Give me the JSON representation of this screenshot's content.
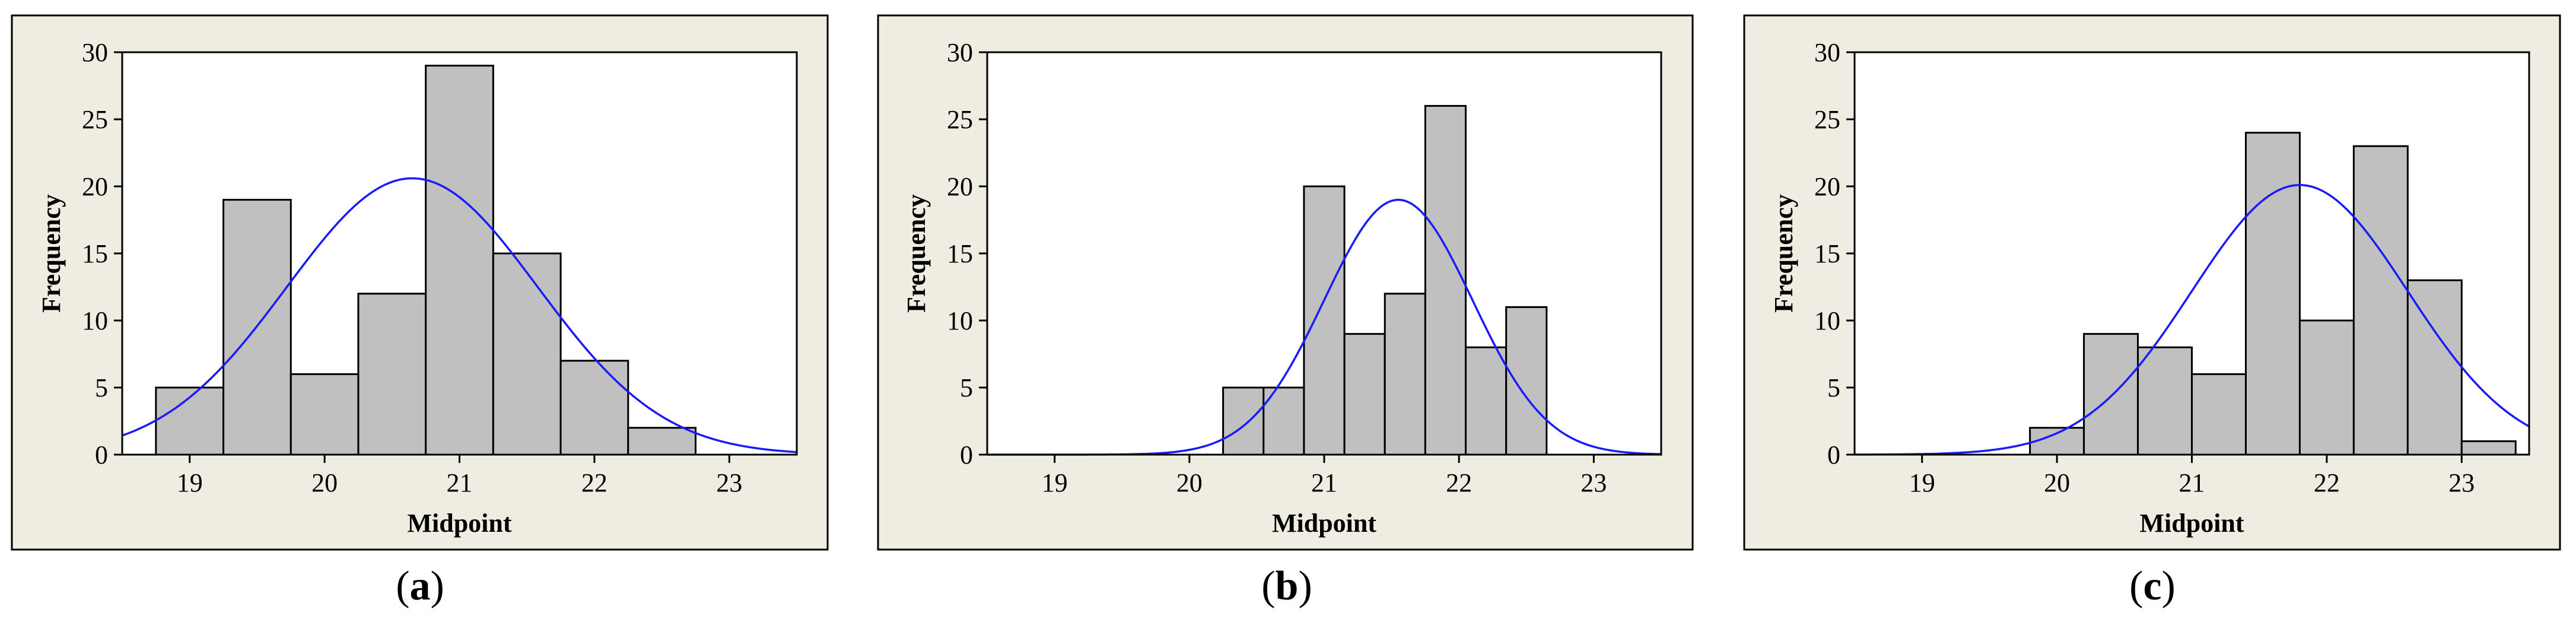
{
  "chart_data": [
    {
      "type": "bar",
      "panel_label": "a",
      "xlabel": "Midpoint",
      "ylabel": "Frequency",
      "xlim": [
        18.5,
        23.5
      ],
      "ylim": [
        0,
        30
      ],
      "xticks": [
        "19",
        "20",
        "21",
        "22",
        "23"
      ],
      "yticks": [
        "0",
        "5",
        "10",
        "15",
        "20",
        "25",
        "30"
      ],
      "bin_width": 0.5,
      "bins": [
        {
          "x": 19.0,
          "value": 5
        },
        {
          "x": 19.5,
          "value": 19
        },
        {
          "x": 20.0,
          "value": 6
        },
        {
          "x": 20.5,
          "value": 12
        },
        {
          "x": 21.0,
          "value": 29
        },
        {
          "x": 21.5,
          "value": 15
        },
        {
          "x": 22.0,
          "value": 7
        },
        {
          "x": 22.5,
          "value": 2
        },
        {
          "x": 23.0,
          "value": 0
        }
      ],
      "normal_curve": {
        "mean": 20.65,
        "sd": 0.93,
        "peak": 20.6,
        "color": "#1a1aff"
      },
      "colors": {
        "bar": "#c0c0c0",
        "frame": "#efece2"
      }
    },
    {
      "type": "bar",
      "panel_label": "b",
      "xlabel": "Midpoint",
      "ylabel": "Frequency",
      "xlim": [
        18.5,
        23.5
      ],
      "ylim": [
        0,
        30
      ],
      "xticks": [
        "19",
        "20",
        "21",
        "22",
        "23"
      ],
      "yticks": [
        "0",
        "5",
        "10",
        "15",
        "20",
        "25",
        "30"
      ],
      "bin_width": 0.3,
      "bins": [
        {
          "x": 20.4,
          "value": 5
        },
        {
          "x": 20.7,
          "value": 5
        },
        {
          "x": 21.0,
          "value": 20
        },
        {
          "x": 21.3,
          "value": 9
        },
        {
          "x": 21.6,
          "value": 12
        },
        {
          "x": 21.9,
          "value": 26
        },
        {
          "x": 22.2,
          "value": 8
        },
        {
          "x": 22.5,
          "value": 11
        },
        {
          "x": 22.8,
          "value": 0
        }
      ],
      "normal_curve": {
        "mean": 21.55,
        "sd": 0.55,
        "peak": 19.0,
        "color": "#1a1aff"
      },
      "colors": {
        "bar": "#c0c0c0",
        "frame": "#efece2"
      }
    },
    {
      "type": "bar",
      "panel_label": "c",
      "xlabel": "Midpoint",
      "ylabel": "Frequency",
      "xlim": [
        18.5,
        23.5
      ],
      "ylim": [
        0,
        30
      ],
      "xticks": [
        "19",
        "20",
        "21",
        "22",
        "23"
      ],
      "yticks": [
        "0",
        "5",
        "10",
        "15",
        "20",
        "25",
        "30"
      ],
      "bin_width": 0.4,
      "bins": [
        {
          "x": 20.0,
          "value": 2
        },
        {
          "x": 20.4,
          "value": 9
        },
        {
          "x": 20.8,
          "value": 8
        },
        {
          "x": 21.2,
          "value": 6
        },
        {
          "x": 21.6,
          "value": 24
        },
        {
          "x": 22.0,
          "value": 10
        },
        {
          "x": 22.4,
          "value": 23
        },
        {
          "x": 22.8,
          "value": 13
        },
        {
          "x": 23.2,
          "value": 1
        }
      ],
      "normal_curve": {
        "mean": 21.8,
        "sd": 0.8,
        "peak": 20.1,
        "color": "#1a1aff"
      },
      "colors": {
        "bar": "#c0c0c0",
        "frame": "#efece2"
      }
    }
  ]
}
